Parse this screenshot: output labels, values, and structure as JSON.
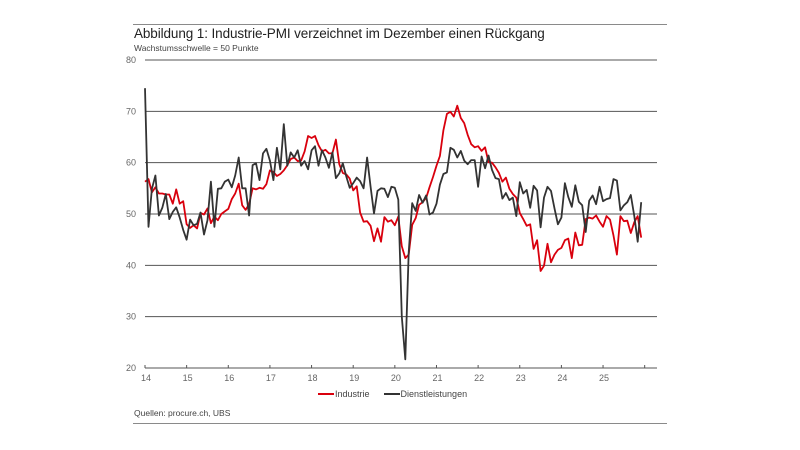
{
  "header": {
    "title": "Abbildung 1: Industrie-PMI verzeichnet im Dezember einen Rückgang",
    "subtitle": "Wachstumsschwelle = 50 Punkte"
  },
  "footer": {
    "source": "Quellen: procure.ch, UBS"
  },
  "colors": {
    "industrie": "#d9000d",
    "dienstleistungen": "#333333",
    "grid": "#555555",
    "axis_text": "#666666"
  },
  "chart_data": {
    "type": "line",
    "title": "Abbildung 1: Industrie-PMI verzeichnet im Dezember einen Rückgang",
    "subtitle": "Wachstumsschwelle = 50 Punkte",
    "xlabel": "",
    "ylabel": "",
    "ylim": [
      20,
      80
    ],
    "yticks": [
      20,
      30,
      40,
      50,
      60,
      70,
      80
    ],
    "ytick_labels": [
      "20",
      "30",
      "40",
      "50",
      "60",
      "70",
      "80"
    ],
    "xticks": [
      "14",
      "15",
      "16",
      "17",
      "18",
      "19",
      "20",
      "21",
      "22",
      "23",
      "24",
      "25"
    ],
    "x_start": "2014-01",
    "x_end": "2025-12",
    "frequency": "monthly",
    "grid": "horizontal",
    "legend_position": "bottom-center",
    "series": [
      {
        "name": "Industrie",
        "color": "#d9000d",
        "values": [
          56.3,
          56.8,
          54.2,
          55.2,
          54.0,
          54.0,
          53.8,
          53.8,
          52.0,
          54.8,
          52.0,
          52.5,
          48.0,
          47.3,
          47.8,
          47.2,
          50.2,
          49.9,
          51.1,
          48.2,
          49.5,
          48.8,
          50.0,
          50.5,
          51.0,
          52.9,
          54.0,
          55.9,
          51.7,
          50.8,
          51.9,
          55.0,
          54.8,
          55.1,
          54.9,
          55.8,
          58.5,
          58.2,
          57.4,
          57.8,
          58.5,
          59.5,
          60.7,
          61.0,
          60.3,
          60.4,
          62.2,
          65.2,
          64.8,
          65.2,
          63.4,
          62.2,
          62.5,
          61.8,
          61.8,
          64.5,
          59.7,
          58.0,
          57.7,
          56.9,
          54.6,
          55.4,
          50.3,
          48.5,
          48.6,
          47.7,
          44.7,
          47.2,
          44.6,
          49.4,
          48.5,
          48.8,
          47.8,
          49.5,
          43.7,
          41.4,
          42.1,
          47.9,
          49.2,
          51.8,
          52.3,
          53.1,
          55.2,
          57.2,
          59.4,
          61.3,
          66.3,
          69.5,
          69.9,
          69.0,
          71.1,
          68.7,
          67.7,
          65.4,
          63.6,
          63.0,
          63.2,
          62.3,
          63.0,
          60.1,
          60.0,
          59.1,
          58.0,
          56.3,
          57.1,
          54.9,
          53.9,
          53.2,
          50.2,
          49.0,
          47.7,
          48.0,
          43.2,
          44.9,
          38.9,
          39.9,
          44.2,
          40.6,
          42.1,
          43.0,
          43.4,
          44.9,
          45.2,
          41.4,
          46.4,
          43.9,
          44.0,
          49.0,
          49.3,
          49.1,
          49.7,
          48.5,
          47.5,
          49.6,
          48.9,
          45.8,
          42.1,
          49.6,
          48.6,
          48.7,
          46.3,
          48.4,
          49.6,
          45.4
        ]
      },
      {
        "name": "Dienstleistungen",
        "color": "#333333",
        "values": [
          74.5,
          47.5,
          54.9,
          57.5,
          49.7,
          51.2,
          53.9,
          49.0,
          50.4,
          51.3,
          49.3,
          46.9,
          45.0,
          48.9,
          47.8,
          48.1,
          50.3,
          46.0,
          48.8,
          56.3,
          47.5,
          54.9,
          55.0,
          56.3,
          56.7,
          55.2,
          57.5,
          61.0,
          55.0,
          55.0,
          49.7,
          59.5,
          59.9,
          56.6,
          61.8,
          62.7,
          60.4,
          56.6,
          62.9,
          58.7,
          67.5,
          59.4,
          62.0,
          61.0,
          62.4,
          59.4,
          60.3,
          58.7,
          62.4,
          63.2,
          59.4,
          62.4,
          61.0,
          59.0,
          62.0,
          57.0,
          57.9,
          59.9,
          57.3,
          55.1,
          56.0,
          57.1,
          56.4,
          55.0,
          61.0,
          55.3,
          50.1,
          54.5,
          55.0,
          54.9,
          53.3,
          55.3,
          55.1,
          52.8,
          30.0,
          21.7,
          42.5,
          52.1,
          50.6,
          53.7,
          52.2,
          53.6,
          49.9,
          50.3,
          52.0,
          55.7,
          57.8,
          58.1,
          62.9,
          62.5,
          61.0,
          62.3,
          60.4,
          59.7,
          60.5,
          60.5,
          55.3,
          61.2,
          58.9,
          61.4,
          58.6,
          57.0,
          56.8,
          53.0,
          54.1,
          52.7,
          53.2,
          49.6,
          56.2,
          54.0,
          54.7,
          51.2,
          55.5,
          54.6,
          47.4,
          53.2,
          55.3,
          54.5,
          51.1,
          48.0,
          49.3,
          56.0,
          53.3,
          51.4,
          55.6,
          52.4,
          51.7,
          46.5,
          52.6,
          53.6,
          51.9,
          55.3,
          52.5,
          52.9,
          53.1,
          56.8,
          56.5,
          50.7,
          51.7,
          52.3,
          53.7,
          49.6,
          44.6,
          52.3
        ]
      }
    ]
  }
}
